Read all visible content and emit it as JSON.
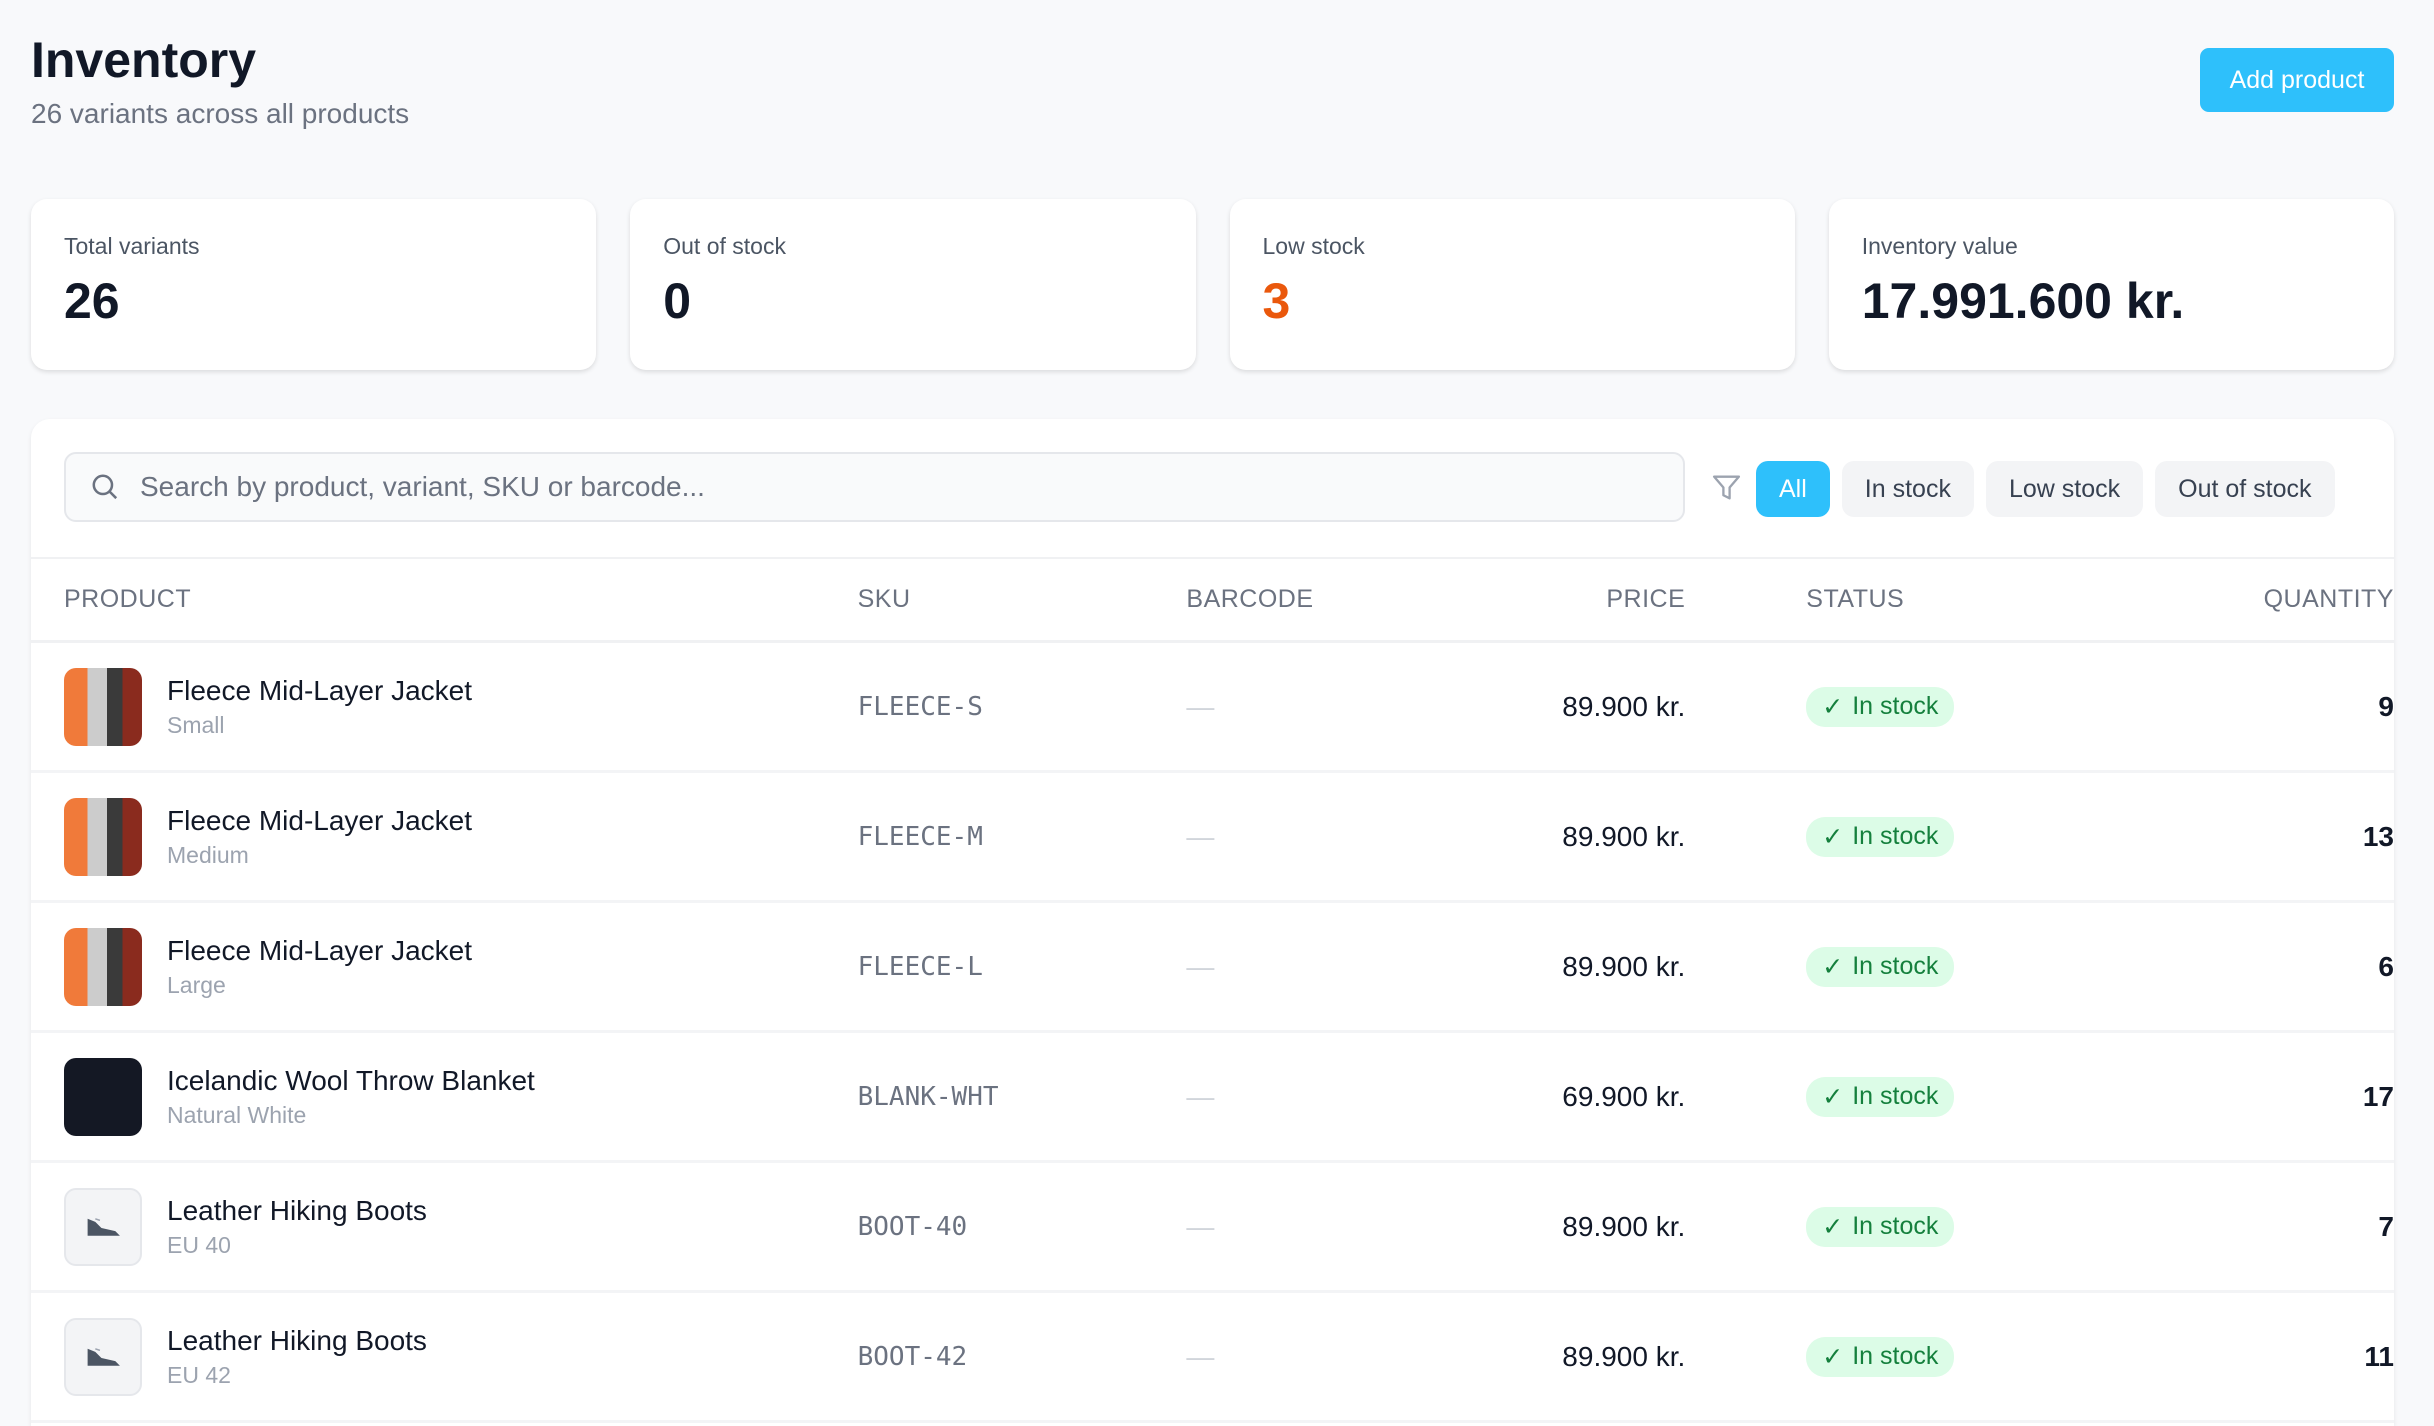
{
  "header": {
    "title": "Inventory",
    "subtitle": "26 variants across all products",
    "add_button": "Add product"
  },
  "stats": [
    {
      "label": "Total variants",
      "value": "26",
      "color": "#111827"
    },
    {
      "label": "Out of stock",
      "value": "0",
      "color": "#111827"
    },
    {
      "label": "Low stock",
      "value": "3",
      "color": "#ea580c"
    },
    {
      "label": "Inventory value",
      "value": "17.991.600 kr.",
      "color": "#111827"
    }
  ],
  "search": {
    "placeholder": "Search by product, variant, SKU or barcode...",
    "value": ""
  },
  "filters": [
    "All",
    "In stock",
    "Low stock",
    "Out of stock"
  ],
  "active_filter": "All",
  "table": {
    "columns": [
      "PRODUCT",
      "SKU",
      "BARCODE",
      "PRICE",
      "STATUS",
      "QUANTITY"
    ],
    "rows": [
      {
        "name": "Fleece Mid-Layer Jacket",
        "variant": "Small",
        "sku": "FLEECE-S",
        "barcode": "—",
        "price": "89.900 kr.",
        "status": "In stock",
        "qty": "9",
        "thumb": "jacket"
      },
      {
        "name": "Fleece Mid-Layer Jacket",
        "variant": "Medium",
        "sku": "FLEECE-M",
        "barcode": "—",
        "price": "89.900 kr.",
        "status": "In stock",
        "qty": "13",
        "thumb": "jacket"
      },
      {
        "name": "Fleece Mid-Layer Jacket",
        "variant": "Large",
        "sku": "FLEECE-L",
        "barcode": "—",
        "price": "89.900 kr.",
        "status": "In stock",
        "qty": "6",
        "thumb": "jacket"
      },
      {
        "name": "Icelandic Wool Throw Blanket",
        "variant": "Natural White",
        "sku": "BLANK-WHT",
        "barcode": "—",
        "price": "69.900 kr.",
        "status": "In stock",
        "qty": "17",
        "thumb": "blanket"
      },
      {
        "name": "Leather Hiking Boots",
        "variant": "EU 40",
        "sku": "BOOT-40",
        "barcode": "—",
        "price": "89.900 kr.",
        "status": "In stock",
        "qty": "7",
        "thumb": "boot"
      },
      {
        "name": "Leather Hiking Boots",
        "variant": "EU 42",
        "sku": "BOOT-42",
        "barcode": "—",
        "price": "89.900 kr.",
        "status": "In stock",
        "qty": "11",
        "thumb": "boot"
      }
    ]
  }
}
